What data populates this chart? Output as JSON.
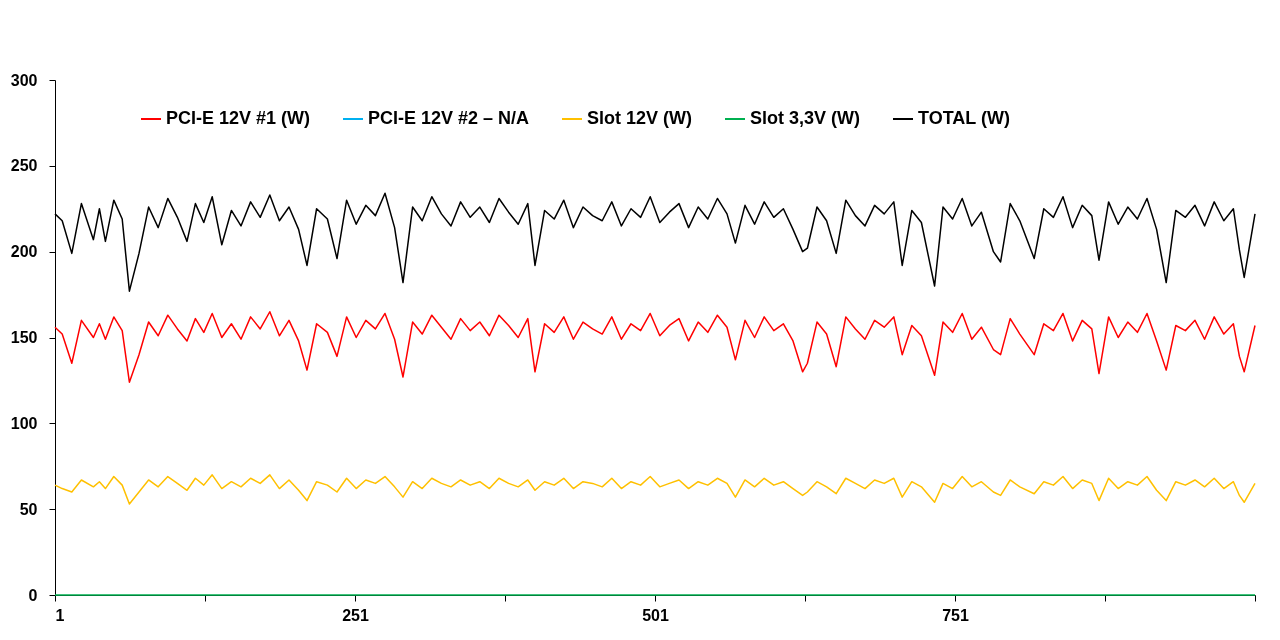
{
  "chart_data": {
    "type": "line",
    "x": [
      1,
      7,
      15,
      23,
      33,
      38,
      43,
      50,
      57,
      63,
      71,
      79,
      87,
      95,
      103,
      111,
      118,
      125,
      132,
      140,
      148,
      156,
      164,
      172,
      180,
      188,
      196,
      204,
      211,
      219,
      228,
      236,
      244,
      252,
      260,
      268,
      276,
      284,
      291,
      299,
      307,
      315,
      323,
      331,
      339,
      347,
      355,
      363,
      371,
      379,
      387,
      395,
      401,
      409,
      417,
      425,
      433,
      441,
      449,
      457,
      465,
      473,
      481,
      489,
      497,
      505,
      513,
      521,
      529,
      537,
      545,
      553,
      561,
      568,
      576,
      584,
      592,
      600,
      608,
      616,
      624,
      628,
      636,
      644,
      652,
      660,
      668,
      676,
      684,
      692,
      700,
      707,
      715,
      723,
      734,
      741,
      749,
      757,
      765,
      773,
      783,
      789,
      797,
      805,
      817,
      825,
      833,
      841,
      849,
      857,
      865,
      871,
      879,
      887,
      895,
      903,
      911,
      919,
      927,
      935,
      943,
      951,
      959,
      967,
      975,
      983,
      988,
      992,
      1001
    ],
    "series": [
      {
        "name": "PCI-E 12V #1 (W)",
        "color": "#ff0000",
        "values": [
          156,
          152,
          135,
          160,
          150,
          158,
          149,
          162,
          154,
          124,
          140,
          159,
          151,
          163,
          155,
          148,
          161,
          153,
          164,
          150,
          158,
          149,
          162,
          155,
          165,
          151,
          160,
          148,
          131,
          158,
          153,
          139,
          162,
          150,
          160,
          155,
          164,
          149,
          127,
          159,
          152,
          163,
          156,
          149,
          161,
          154,
          159,
          151,
          163,
          157,
          150,
          161,
          130,
          158,
          153,
          162,
          149,
          159,
          155,
          152,
          162,
          149,
          158,
          154,
          164,
          151,
          157,
          161,
          148,
          159,
          153,
          163,
          156,
          137,
          160,
          150,
          162,
          154,
          158,
          148,
          130,
          135,
          159,
          152,
          133,
          162,
          155,
          149,
          160,
          156,
          162,
          140,
          157,
          151,
          128,
          159,
          153,
          164,
          149,
          156,
          143,
          140,
          161,
          152,
          140,
          158,
          154,
          164,
          148,
          160,
          155,
          129,
          162,
          150,
          159,
          153,
          164,
          148,
          131,
          157,
          154,
          160,
          149,
          162,
          152,
          158,
          139,
          130,
          157
        ]
      },
      {
        "name": "PCI-E 12V #2 – N/A",
        "color": "#00b0f0",
        "values": [
          null,
          null,
          null,
          null,
          null,
          null,
          null,
          null,
          null,
          null,
          null,
          null,
          null,
          null,
          null,
          null,
          null,
          null,
          null,
          null,
          null,
          null,
          null,
          null,
          null,
          null,
          null,
          null,
          null,
          null,
          null,
          null,
          null,
          null,
          null,
          null,
          null,
          null,
          null,
          null,
          null,
          null,
          null,
          null,
          null,
          null,
          null,
          null,
          null,
          null,
          null,
          null,
          null,
          null,
          null,
          null,
          null,
          null,
          null,
          null,
          null,
          null,
          null,
          null,
          null,
          null,
          null,
          null,
          null,
          null,
          null,
          null,
          null,
          null,
          null,
          null,
          null,
          null,
          null,
          null,
          null,
          null,
          null,
          null,
          null,
          null,
          null,
          null,
          null,
          null,
          null,
          null,
          null,
          null,
          null,
          null,
          null,
          null,
          null,
          null,
          null,
          null,
          null,
          null,
          null,
          null,
          null,
          null,
          null,
          null,
          null,
          null,
          null,
          null,
          null,
          null,
          null,
          null,
          null,
          null,
          null,
          null,
          null,
          null,
          null,
          null,
          null,
          null,
          null
        ]
      },
      {
        "name": "Slot 12V (W)",
        "color": "#ffc000",
        "values": [
          64,
          62,
          60,
          67,
          63,
          66,
          62,
          69,
          64,
          53,
          60,
          67,
          63,
          69,
          65,
          61,
          68,
          64,
          70,
          62,
          66,
          63,
          68,
          65,
          70,
          62,
          67,
          61,
          55,
          66,
          64,
          60,
          68,
          62,
          67,
          65,
          69,
          63,
          57,
          66,
          62,
          68,
          65,
          63,
          67,
          64,
          66,
          62,
          68,
          65,
          63,
          67,
          61,
          66,
          64,
          68,
          62,
          66,
          65,
          63,
          68,
          62,
          66,
          64,
          69,
          63,
          65,
          67,
          62,
          66,
          64,
          68,
          65,
          57,
          67,
          63,
          68,
          64,
          66,
          62,
          58,
          60,
          66,
          63,
          59,
          68,
          65,
          62,
          67,
          65,
          68,
          57,
          66,
          63,
          54,
          65,
          62,
          69,
          63,
          66,
          60,
          58,
          67,
          63,
          59,
          66,
          64,
          69,
          62,
          67,
          65,
          55,
          68,
          62,
          66,
          64,
          69,
          61,
          55,
          66,
          64,
          67,
          63,
          68,
          62,
          66,
          58,
          54,
          65
        ]
      },
      {
        "name": "Slot 3,3V (W)",
        "color": "#00b050",
        "x": [
          1,
          1001
        ],
        "values": [
          0,
          0
        ]
      },
      {
        "name": "TOTAL (W)",
        "color": "#000000",
        "values": [
          222,
          218,
          199,
          228,
          207,
          225,
          206,
          230,
          219,
          177,
          199,
          226,
          214,
          231,
          220,
          206,
          228,
          217,
          232,
          204,
          224,
          215,
          229,
          220,
          233,
          218,
          226,
          213,
          192,
          225,
          219,
          196,
          230,
          216,
          227,
          221,
          234,
          214,
          182,
          226,
          218,
          232,
          222,
          215,
          229,
          220,
          226,
          217,
          231,
          223,
          216,
          228,
          192,
          224,
          219,
          230,
          214,
          226,
          221,
          218,
          229,
          215,
          225,
          220,
          232,
          217,
          223,
          228,
          214,
          226,
          219,
          231,
          222,
          205,
          227,
          216,
          229,
          220,
          225,
          213,
          200,
          202,
          226,
          218,
          199,
          230,
          221,
          215,
          227,
          222,
          229,
          192,
          224,
          217,
          180,
          226,
          219,
          231,
          215,
          223,
          200,
          194,
          228,
          218,
          196,
          225,
          220,
          232,
          214,
          227,
          221,
          195,
          229,
          216,
          226,
          219,
          231,
          213,
          182,
          224,
          220,
          227,
          215,
          229,
          218,
          225,
          201,
          185,
          222
        ]
      }
    ],
    "xlim": [
      1,
      1001
    ],
    "xticks": [
      1,
      {
        "value": 126,
        "label": null
      },
      251,
      {
        "value": 376,
        "label": null
      },
      501,
      {
        "value": 626,
        "label": null
      },
      751,
      {
        "value": 876,
        "label": null
      },
      {
        "value": 1001,
        "label": null
      }
    ],
    "ylim": [
      0,
      300
    ],
    "yticks": [
      0,
      50,
      100,
      150,
      200,
      250,
      300
    ],
    "grid": false,
    "legend": "top",
    "marker": "none",
    "line_style": "solid"
  }
}
